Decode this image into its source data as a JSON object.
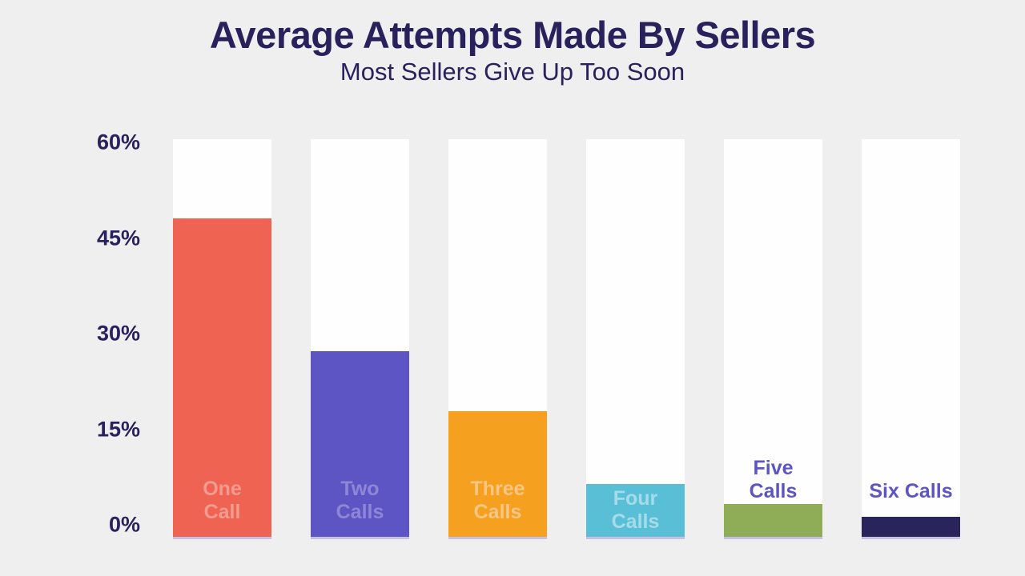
{
  "page": {
    "background_color": "#f0eff0"
  },
  "header": {
    "title": "Average Attempts Made By Sellers",
    "subtitle": "Most Sellers Give Up Too Soon",
    "text_color": "#29215c"
  },
  "chart_data": {
    "type": "bar",
    "title": "Average Attempts Made By Sellers",
    "subtitle": "Most Sellers Give Up Too Soon",
    "categories": [
      "One Call",
      "Two Calls",
      "Three Calls",
      "Four Calls",
      "Five Calls",
      "Six Calls"
    ],
    "values": [
      48,
      28,
      19,
      8,
      5,
      3
    ],
    "unit": "%",
    "xlabel": "",
    "ylabel": "",
    "ylim": [
      0,
      60
    ],
    "ytick_labels": [
      "60%",
      "45%",
      "30%",
      "15%",
      "0%"
    ],
    "grid": false,
    "legend": false,
    "bar_background_color": "#fffeff",
    "axis_text_color": "#29215c",
    "bars": [
      {
        "category": "One Call",
        "label_lines": [
          "One",
          "Call"
        ],
        "value": 48,
        "fill_color": "#ee6352",
        "label_color": "#f29b8e",
        "label_placement": "inside-bottom"
      },
      {
        "category": "Two Calls",
        "label_lines": [
          "Two",
          "Calls"
        ],
        "value": 28,
        "fill_color": "#5c55c3",
        "label_color": "#8d87d6",
        "label_placement": "inside-bottom"
      },
      {
        "category": "Three Calls",
        "label_lines": [
          "Three",
          "Calls"
        ],
        "value": 19,
        "fill_color": "#f5a01f",
        "label_color": "#f9c686",
        "label_placement": "inside-bottom"
      },
      {
        "category": "Four Calls",
        "label_lines": [
          "Four",
          "Calls"
        ],
        "value": 8,
        "fill_color": "#58bfd6",
        "label_color": "#a6dcea",
        "label_placement": "inside-center"
      },
      {
        "category": "Five Calls",
        "label_lines": [
          "Five",
          "Calls"
        ],
        "value": 5,
        "fill_color": "#8fac56",
        "label_color": "#5c55c3",
        "label_placement": "above"
      },
      {
        "category": "Six Calls",
        "label_lines": [
          "Six Calls"
        ],
        "value": 3,
        "fill_color": "#29245c",
        "label_color": "#5c55c3",
        "label_placement": "above"
      }
    ]
  }
}
